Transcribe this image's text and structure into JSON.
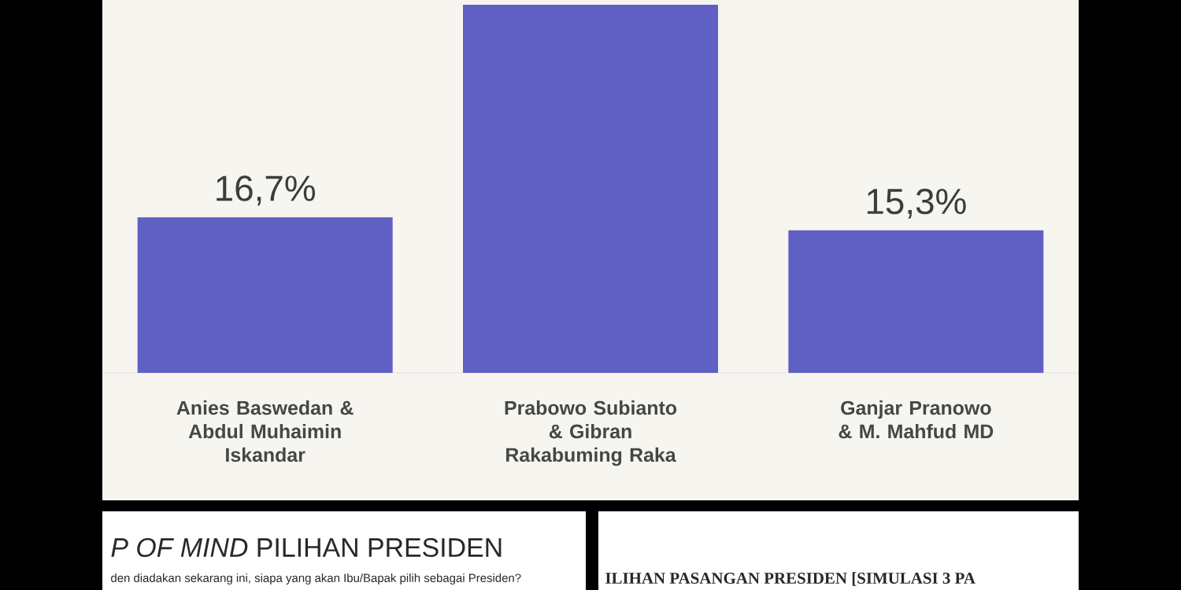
{
  "chart_data": {
    "type": "bar",
    "categories": [
      "Anies Baswedan & Abdul Muhaimin Iskandar",
      "Prabowo Subianto & Gibran Rakabuming Raka",
      "Ganjar Pranowo & M. Mahfud MD"
    ],
    "values": [
      16.7,
      39.5,
      15.3
    ],
    "value_labels": [
      "16,7%",
      null,
      "15,3%"
    ],
    "color": "#6060c4",
    "annotations": [
      "*P OF MIND* PILIHAN PRESIDEN",
      "den diadakan sekarang ini, siapa yang akan Ibu/Bapak pilih sebagai Presiden?",
      "ILIHAN PASANGAN PRESIDEN [SIMULASI 3 PA"
    ]
  }
}
